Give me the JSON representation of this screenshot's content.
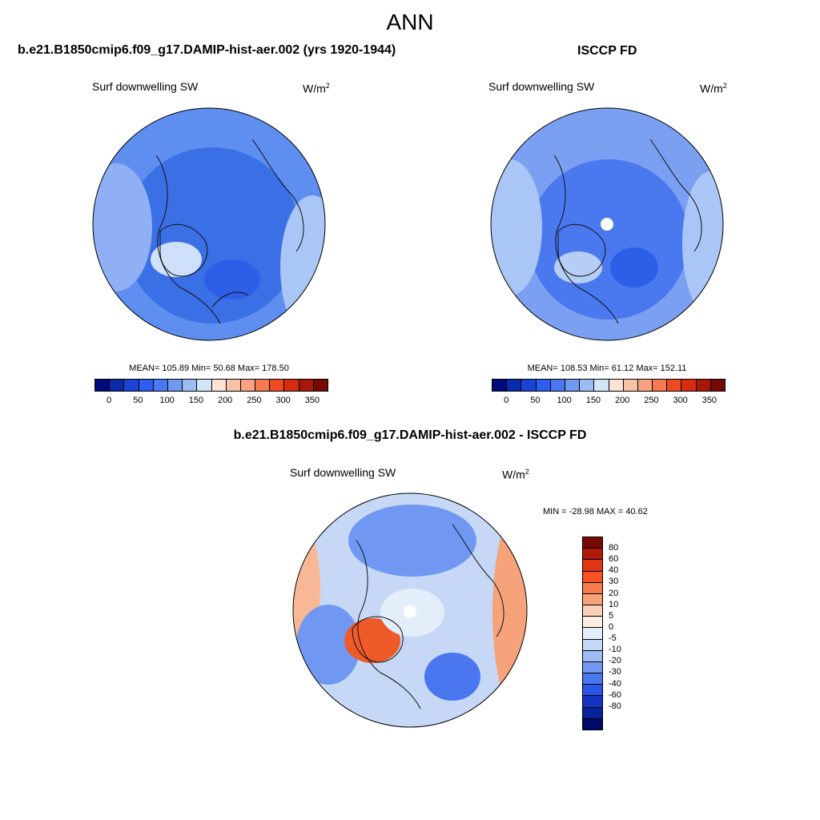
{
  "title": "ANN",
  "panels": [
    {
      "title": "b.e21.B1850cmip6.f09_g17.DAMIP-hist-aer.002 (yrs 1920-1944)",
      "subtitle": "Surf downwelling SW",
      "units": "W/m",
      "units_exp": "2",
      "stats": "MEAN= 105.89  Min=  50.68  Max= 178.50",
      "base_color": "#3c6ee8"
    },
    {
      "title": "ISCCP FD",
      "subtitle": "Surf downwelling SW",
      "units": "W/m",
      "units_exp": "2",
      "stats": "MEAN= 108.53  Min=  61.12  Max= 152.11",
      "base_color": "#5a88ee"
    },
    {
      "title": "b.e21.B1850cmip6.f09_g17.DAMIP-hist-aer.002 - ISCCP FD",
      "subtitle": "Surf downwelling SW",
      "units": "W/m",
      "units_exp": "2",
      "stats": "MIN = -28.98 MAX =  40.62",
      "base_color": "#a9c6f3"
    }
  ],
  "colorbar_main": {
    "colors": [
      "#000a7a",
      "#0a2aaa",
      "#1a44d6",
      "#2d5ef0",
      "#4a78f2",
      "#7099f2",
      "#9ebcf4",
      "#d2e4f8",
      "#fde3d6",
      "#f9c3aa",
      "#f7a280",
      "#f57a52",
      "#ee4a22",
      "#d62c12",
      "#a81808",
      "#780a04"
    ],
    "labels": [
      "0",
      "50",
      "100",
      "150",
      "200",
      "250",
      "300",
      "350"
    ]
  },
  "colorbar_diff": {
    "colors": [
      "#780a04",
      "#b01a08",
      "#e03414",
      "#f65420",
      "#f87a48",
      "#f8a27a",
      "#fad0b6",
      "#fdeee4",
      "#e4eefb",
      "#c4d8f6",
      "#9ebcf4",
      "#7098f2",
      "#4a76f0",
      "#2a56ea",
      "#1434c4",
      "#082298",
      "#000a6a"
    ],
    "labels": [
      "80",
      "60",
      "40",
      "30",
      "20",
      "10",
      "5",
      "0",
      "-5",
      "-10",
      "-20",
      "-30",
      "-40",
      "-60",
      "-80"
    ]
  }
}
